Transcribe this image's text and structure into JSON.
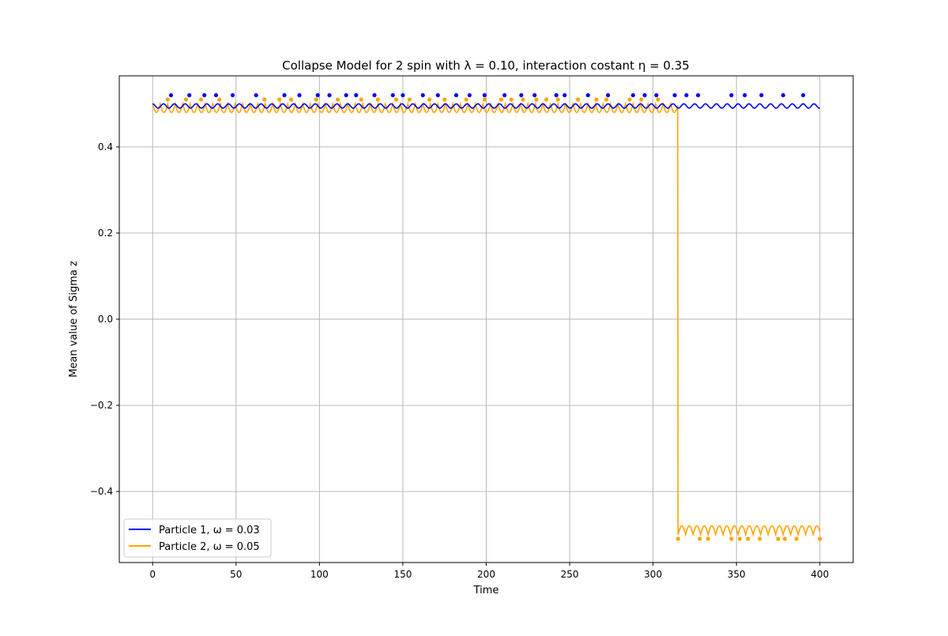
{
  "chart_data": {
    "type": "line",
    "title": "Collapse Model for 2 spin with λ = 0.10, interaction costant η = 0.35",
    "xlabel": "Time",
    "ylabel": "Mean value of Sigma z",
    "xlim": [
      -20,
      420
    ],
    "ylim": [
      -0.565,
      0.565
    ],
    "xticks": [
      0,
      50,
      100,
      150,
      200,
      250,
      300,
      350,
      400
    ],
    "yticks": [
      -0.4,
      -0.2,
      0.0,
      0.2,
      0.4
    ],
    "xtick_labels": [
      "0",
      "50",
      "100",
      "150",
      "200",
      "250",
      "300",
      "350",
      "400"
    ],
    "ytick_labels": [
      "−0.4",
      "−0.2",
      "0.0",
      "0.2",
      "0.4"
    ],
    "grid": true,
    "legend_position": "lower-left",
    "series": [
      {
        "name": "Particle 1, ω = 0.03",
        "color": "#0000ff",
        "description_level": 0.5,
        "oscillation_min": 0.49,
        "oscillation_max": 0.5,
        "oscillation_period": 6.5,
        "collapse_markers_y": 0.52,
        "collapse_markers_x": [
          11,
          22,
          31,
          38,
          48,
          62,
          79,
          88,
          99,
          106,
          116,
          122,
          133,
          144,
          150,
          162,
          171,
          182,
          190,
          199,
          211,
          221,
          229,
          242,
          247,
          261,
          273,
          288,
          295,
          302,
          313,
          320,
          327,
          347,
          355,
          365,
          378,
          390
        ]
      },
      {
        "name": "Particle 2, ω = 0.05",
        "color": "#ffa500",
        "pre_collapse_level": 0.5,
        "pre_collapse_min": 0.48,
        "post_collapse_level": -0.48,
        "post_collapse_min": -0.5,
        "collapse_time": 315,
        "oscillation_period": 4.5,
        "collapse_markers_pre_y": 0.51,
        "collapse_markers_pre_x": [
          9,
          20,
          29,
          40,
          67,
          76,
          83,
          98,
          111,
          125,
          135,
          146,
          154,
          166,
          175,
          188,
          199,
          209,
          215,
          222,
          230,
          236,
          243,
          255,
          266,
          272,
          286,
          293,
          303
        ],
        "collapse_markers_post_y": -0.51,
        "collapse_markers_post_x": [
          315,
          328,
          333,
          347,
          352,
          357,
          364,
          375,
          379,
          386,
          400
        ]
      }
    ]
  }
}
